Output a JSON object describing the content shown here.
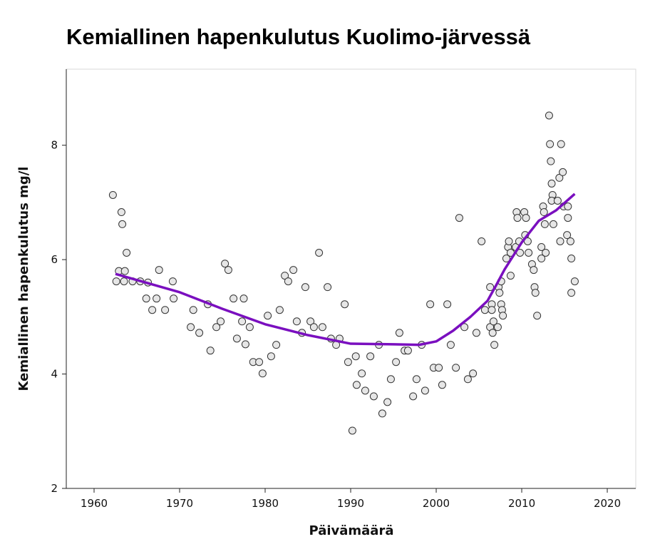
{
  "chart_data": {
    "type": "scatter",
    "title": "Kemiallinen hapenkulutus Kuolimo-järvessä",
    "x_label": "Päivämäärä",
    "y_label": "Kemiallinen hapenkulutus mg/l",
    "xlim": [
      1956.75,
      2023.33
    ],
    "ylim": [
      2,
      9.33
    ],
    "xticks": [
      1960,
      1970,
      1980,
      1990,
      2000,
      2010,
      2020
    ],
    "yticks": [
      2,
      4,
      6,
      8
    ],
    "point_color": "#e6e6e6",
    "line_color": "#7a0fbf",
    "points": {
      "x": [
        1962.2,
        1962.6,
        1962.9,
        1963.2,
        1963.3,
        1963.5,
        1963.6,
        1963.8,
        1964.5,
        1965.4,
        1966.1,
        1966.3,
        1966.8,
        1967.3,
        1967.6,
        1968.3,
        1969.2,
        1969.3,
        1971.3,
        1971.6,
        1972.3,
        1973.3,
        1973.6,
        1974.3,
        1974.8,
        1975.3,
        1975.7,
        1976.3,
        1976.7,
        1977.3,
        1977.5,
        1977.7,
        1978.2,
        1978.6,
        1979.3,
        1979.7,
        1980.3,
        1980.7,
        1981.3,
        1981.7,
        1982.3,
        1982.7,
        1983.3,
        1983.7,
        1984.3,
        1984.7,
        1985.3,
        1985.7,
        1986.3,
        1986.7,
        1987.3,
        1987.7,
        1988.3,
        1988.7,
        1989.3,
        1989.7,
        1990.2,
        1990.6,
        1990.7,
        1991.3,
        1991.7,
        1992.3,
        1992.7,
        1993.3,
        1993.7,
        1994.3,
        1994.7,
        1995.3,
        1995.7,
        1996.3,
        1996.7,
        1997.3,
        1997.7,
        1998.3,
        1998.7,
        1999.3,
        1999.7,
        2000.3,
        2000.7,
        2001.3,
        2001.7,
        2002.3,
        2002.7,
        2003.3,
        2003.7,
        2004.3,
        2004.7,
        2005.3,
        2005.7,
        2006.3,
        2006.3,
        2006.5,
        2006.5,
        2006.6,
        2006.7,
        2006.8,
        2007.2,
        2007.3,
        2007.4,
        2007.6,
        2007.6,
        2007.7,
        2007.8,
        2008.2,
        2008.4,
        2008.5,
        2008.7,
        2008.7,
        2009.3,
        2009.4,
        2009.5,
        2009.7,
        2009.8,
        2010.3,
        2010.4,
        2010.5,
        2010.7,
        2010.8,
        2011.2,
        2011.4,
        2011.5,
        2011.6,
        2011.8,
        2012.3,
        2012.3,
        2012.5,
        2012.6,
        2012.7,
        2012.8,
        2013.2,
        2013.3,
        2013.4,
        2013.5,
        2013.6,
        2013.5,
        2013.7,
        2014.2,
        2014.4,
        2014.5,
        2014.6,
        2014.8,
        2014.9,
        2015.3,
        2015.4,
        2015.4,
        2015.7,
        2015.8,
        2015.8,
        2016.2
      ],
      "y": [
        7.13,
        5.62,
        5.8,
        6.83,
        6.62,
        5.62,
        5.8,
        6.12,
        5.62,
        5.62,
        5.32,
        5.6,
        5.12,
        5.32,
        5.82,
        5.12,
        5.62,
        5.32,
        4.82,
        5.12,
        4.72,
        5.22,
        4.41,
        4.82,
        4.92,
        5.93,
        5.82,
        5.32,
        4.62,
        4.92,
        5.32,
        4.52,
        4.82,
        4.21,
        4.21,
        4.01,
        5.02,
        4.31,
        4.51,
        5.12,
        5.72,
        5.62,
        5.82,
        4.92,
        4.72,
        5.52,
        4.92,
        4.82,
        6.12,
        4.82,
        5.52,
        4.62,
        4.51,
        4.62,
        5.22,
        4.21,
        3.01,
        4.31,
        3.81,
        4.01,
        3.71,
        4.31,
        3.61,
        4.51,
        3.31,
        3.51,
        3.91,
        4.21,
        4.72,
        4.41,
        4.41,
        3.61,
        3.91,
        4.51,
        3.71,
        5.22,
        4.11,
        4.11,
        3.81,
        5.22,
        4.51,
        4.11,
        6.73,
        4.82,
        3.91,
        4.01,
        4.72,
        6.32,
        5.12,
        5.52,
        4.82,
        5.22,
        5.12,
        4.72,
        4.92,
        4.51,
        4.82,
        5.52,
        5.42,
        5.62,
        5.22,
        5.12,
        5.02,
        6.02,
        6.22,
        6.32,
        6.12,
        5.72,
        6.22,
        6.83,
        6.73,
        6.32,
        6.12,
        6.83,
        6.43,
        6.73,
        6.32,
        6.12,
        5.92,
        5.82,
        5.52,
        5.42,
        5.02,
        6.02,
        6.22,
        6.93,
        6.83,
        6.62,
        6.12,
        8.52,
        8.02,
        7.72,
        7.33,
        7.13,
        7.03,
        6.62,
        7.03,
        7.43,
        6.32,
        8.02,
        7.53,
        6.93,
        6.43,
        6.93,
        6.73,
        6.32,
        6.02,
        5.42,
        5.62
      ]
    },
    "trend": {
      "x": [
        1962.5,
        1970,
        1975,
        1980,
        1985,
        1990,
        1995,
        1998,
        2000,
        2002,
        2004,
        2006,
        2007,
        2008,
        2010,
        2012,
        2014,
        2016.2
      ],
      "y": [
        5.75,
        5.43,
        5.14,
        4.87,
        4.68,
        4.53,
        4.52,
        4.51,
        4.57,
        4.76,
        5.0,
        5.28,
        5.55,
        5.83,
        6.3,
        6.68,
        6.86,
        7.15
      ]
    }
  }
}
